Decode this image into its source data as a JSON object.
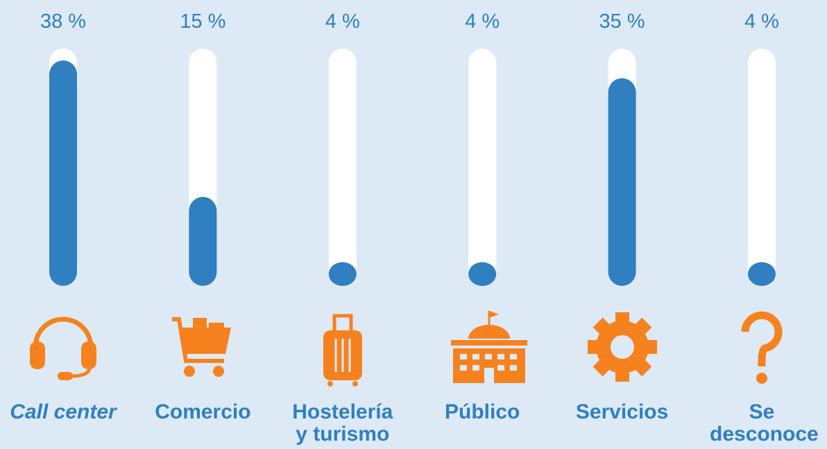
{
  "chart_data": {
    "type": "bar",
    "categories": [
      "Call center",
      "Comercio",
      "Hostelería y turismo",
      "Público",
      "Servicios",
      "Se desconoce"
    ],
    "values": [
      38,
      15,
      4,
      4,
      35,
      4
    ],
    "value_labels": [
      "38 %",
      "15 %",
      "4 %",
      "4 %",
      "35 %",
      "4 %"
    ],
    "color": "#2f7fc1",
    "ylim": [
      0,
      40
    ]
  }
}
